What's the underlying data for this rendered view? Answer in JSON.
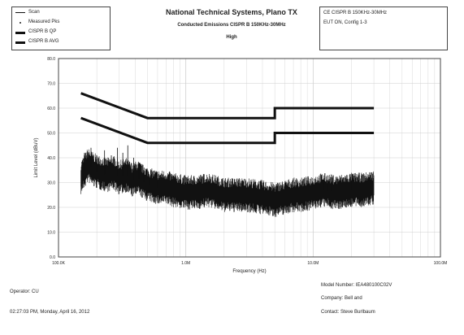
{
  "legend": {
    "items": [
      {
        "label": "Scan",
        "swatch": "thin"
      },
      {
        "label": "Measured Pks",
        "swatch": "dot"
      },
      {
        "label": "CISPR B QP",
        "swatch": "thick"
      },
      {
        "label": "CISPR B AVG",
        "swatch": "thick"
      }
    ]
  },
  "header": {
    "title": "National Technical Systems, Plano TX",
    "subtitle": "Conducted Emissions CISPR B 150KHz-30MHz",
    "line3": "High"
  },
  "info_box": {
    "line1": "CE CISPR B 150KHz-30MHz",
    "line2": "EUT ON, Config 1-3"
  },
  "footer": {
    "model": "Model Number: IEA480100C02V",
    "company": "Company: Bell and",
    "contact": "Contact: Steve Burlbaum",
    "operator": "Operator: CU",
    "timestamp": "02:27:03 PM, Monday, April 16, 2012"
  },
  "colors": {
    "trace": "#111111",
    "limit": "#111111",
    "grid": "#cfcfcf",
    "axis": "#444444"
  },
  "chart_data": {
    "type": "line",
    "xlabel": "Frequency (Hz)",
    "ylabel": "Limit Level (dBuV)",
    "xscale": "log",
    "xlim": [
      100000,
      100000000
    ],
    "ylim": [
      0,
      80
    ],
    "xticks": [
      {
        "value": 100000,
        "label": "100.0K"
      },
      {
        "value": 1000000,
        "label": "1.0M"
      },
      {
        "value": 10000000,
        "label": "10.0M"
      },
      {
        "value": 100000000,
        "label": "100.0M"
      }
    ],
    "yticks": [
      {
        "value": 0,
        "label": "0.0"
      },
      {
        "value": 10,
        "label": "10.0"
      },
      {
        "value": 20,
        "label": "20.0"
      },
      {
        "value": 30,
        "label": "30.0"
      },
      {
        "value": 40,
        "label": "40.0"
      },
      {
        "value": 50,
        "label": "50.0"
      },
      {
        "value": 60,
        "label": "60.0"
      },
      {
        "value": 70,
        "label": "70.0"
      },
      {
        "value": 80,
        "label": "80.0"
      }
    ],
    "grid": true,
    "series": [
      {
        "name": "CISPR B QP",
        "style": "thick",
        "x": [
          150000,
          500000,
          5000000,
          5000000,
          30000000
        ],
        "y": [
          66,
          56,
          56,
          60,
          60
        ]
      },
      {
        "name": "CISPR B AVG",
        "style": "thick",
        "x": [
          150000,
          500000,
          5000000,
          5000000,
          30000000
        ],
        "y": [
          56,
          46,
          46,
          50,
          50
        ]
      },
      {
        "name": "Scan",
        "style": "thin",
        "x": [
          150000,
          170000,
          190000,
          210000,
          240000,
          270000,
          300000,
          340000,
          380000,
          420000,
          470000,
          520000,
          600000,
          700000,
          800000,
          1000000,
          1200000,
          1500000,
          2000000,
          2500000,
          3000000,
          4000000,
          5000000,
          6000000,
          7000000,
          8000000,
          10000000,
          12000000,
          15000000,
          20000000,
          25000000,
          30000000
        ],
        "y": [
          32,
          37,
          35,
          34,
          33,
          34,
          32,
          33,
          31,
          32,
          30,
          29,
          28,
          28,
          27,
          26,
          26,
          27,
          25,
          25,
          25,
          24,
          23,
          24,
          25,
          25,
          26,
          27,
          26,
          27,
          27,
          28
        ],
        "peaks_x": [
          160000,
          180000,
          200000,
          230000,
          260000,
          290000,
          320000,
          350000,
          390000,
          430000,
          470000,
          520000,
          600000,
          12000000,
          13000000,
          14000000,
          20000000,
          28000000
        ],
        "peaks_y": [
          42,
          44,
          40,
          43,
          41,
          44,
          42,
          45,
          40,
          38,
          36,
          33,
          31,
          30,
          31,
          30,
          31,
          33
        ]
      }
    ]
  }
}
